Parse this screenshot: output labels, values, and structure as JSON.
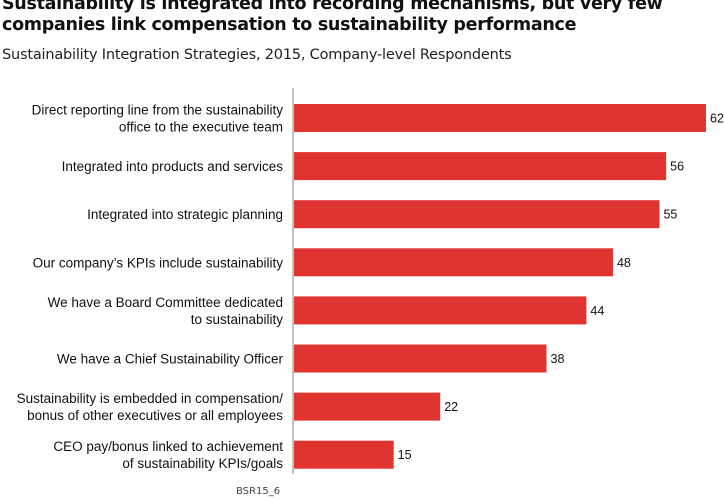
{
  "header": {
    "title_line1": "Sustainability is integrated into recording mechanisms, but very few",
    "title_line2": "companies link compensation to sustainability performance",
    "subtitle": "Sustainability Integration Strategies, 2015, Company-level Respondents"
  },
  "footer": {
    "source_code": "BSR15_6"
  },
  "colors": {
    "bar": "#e03431",
    "axis": "#9a9a9a"
  },
  "chart_data": {
    "type": "bar",
    "orientation": "horizontal",
    "title": "Sustainability is integrated into recording mechanisms, but very few companies link compensation to sustainability performance",
    "subtitle": "Sustainability Integration Strategies, 2015, Company-level Respondents",
    "xlabel": "",
    "ylabel": "",
    "xlim": [
      0,
      62
    ],
    "grid": false,
    "legend": "none",
    "categories": [
      [
        "Direct reporting line from the sustainability",
        "office to the executive team"
      ],
      [
        "Integrated into products and services"
      ],
      [
        "Integrated into strategic planning"
      ],
      [
        "Our company’s KPIs include sustainability"
      ],
      [
        "We have a Board Committee dedicated",
        "to sustainability"
      ],
      [
        "We have a Chief Sustainability Officer"
      ],
      [
        "Sustainability is embedded in compensation/",
        "bonus of other executives or all employees"
      ],
      [
        "CEO pay/bonus linked to achievement",
        "of sustainability KPIs/goals"
      ]
    ],
    "values": [
      62,
      56,
      55,
      48,
      44,
      38,
      22,
      15
    ]
  }
}
